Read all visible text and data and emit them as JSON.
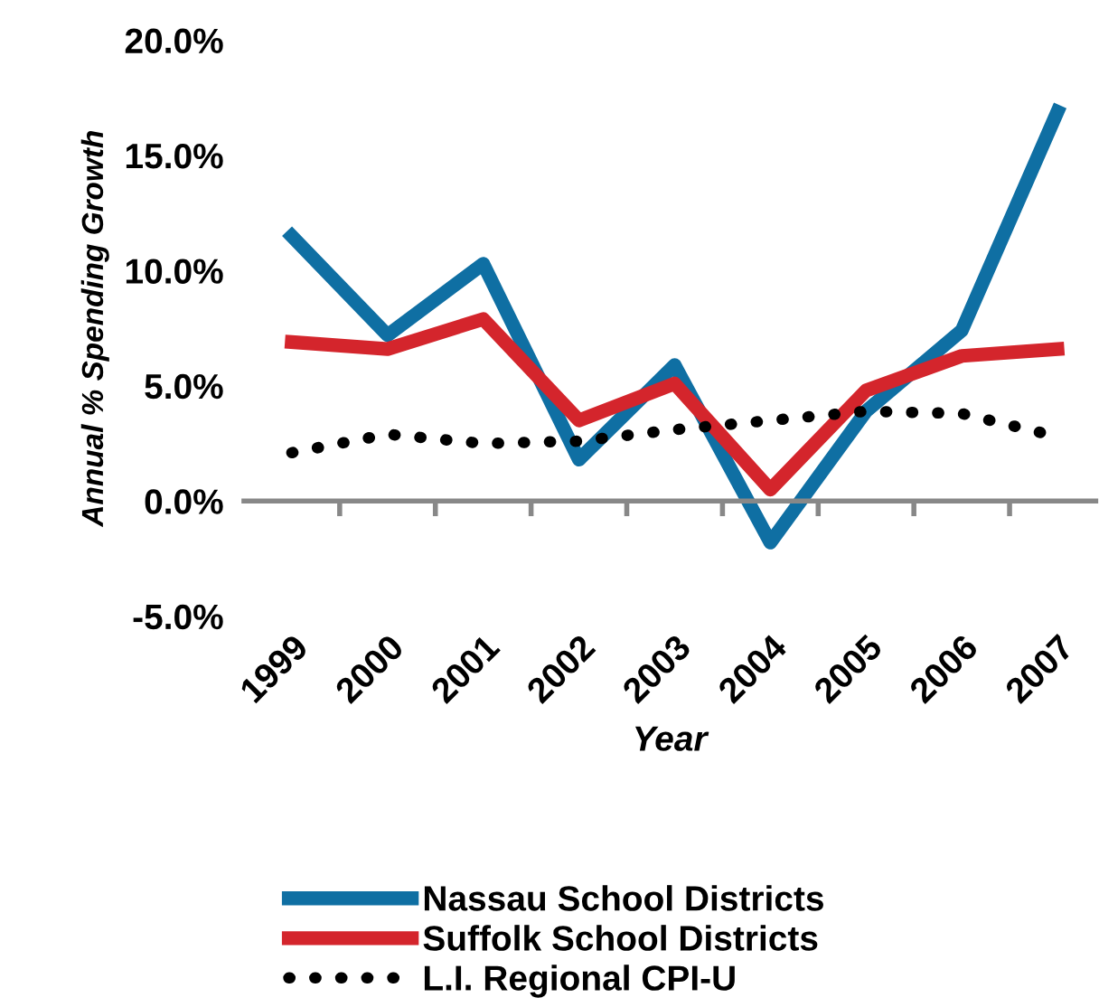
{
  "chart_data": {
    "type": "line",
    "xlabel": "Year",
    "ylabel": "Annual % Spending Growth",
    "categories": [
      "1999",
      "2000",
      "2001",
      "2002",
      "2003",
      "2004",
      "2005",
      "2006",
      "2007"
    ],
    "series": [
      {
        "name": "Nassau School Districts",
        "color": "#0f6fa3",
        "line_style": "solid",
        "values": [
          11.5,
          7.2,
          10.3,
          1.8,
          5.9,
          -1.8,
          3.9,
          7.4,
          16.9
        ]
      },
      {
        "name": "Suffolk School Districts",
        "color": "#d4252c",
        "line_style": "solid",
        "values": [
          6.9,
          6.6,
          7.9,
          3.5,
          5.1,
          0.5,
          4.8,
          6.3,
          6.6
        ]
      },
      {
        "name": "L.I. Regional CPI-U",
        "color": "#000000",
        "line_style": "dotted",
        "values": [
          2.1,
          2.9,
          2.5,
          2.6,
          3.1,
          3.5,
          3.9,
          3.8,
          2.8
        ]
      }
    ],
    "ylim": [
      -5,
      20
    ],
    "yticks": [
      {
        "value": -5,
        "label": "-5.0%"
      },
      {
        "value": 0,
        "label": "0.0%"
      },
      {
        "value": 5,
        "label": "5.0%"
      },
      {
        "value": 10,
        "label": "10.0%"
      },
      {
        "value": 15,
        "label": "15.0%"
      },
      {
        "value": 20,
        "label": "20.0%"
      }
    ],
    "legend": "bottom",
    "marker": "none"
  }
}
